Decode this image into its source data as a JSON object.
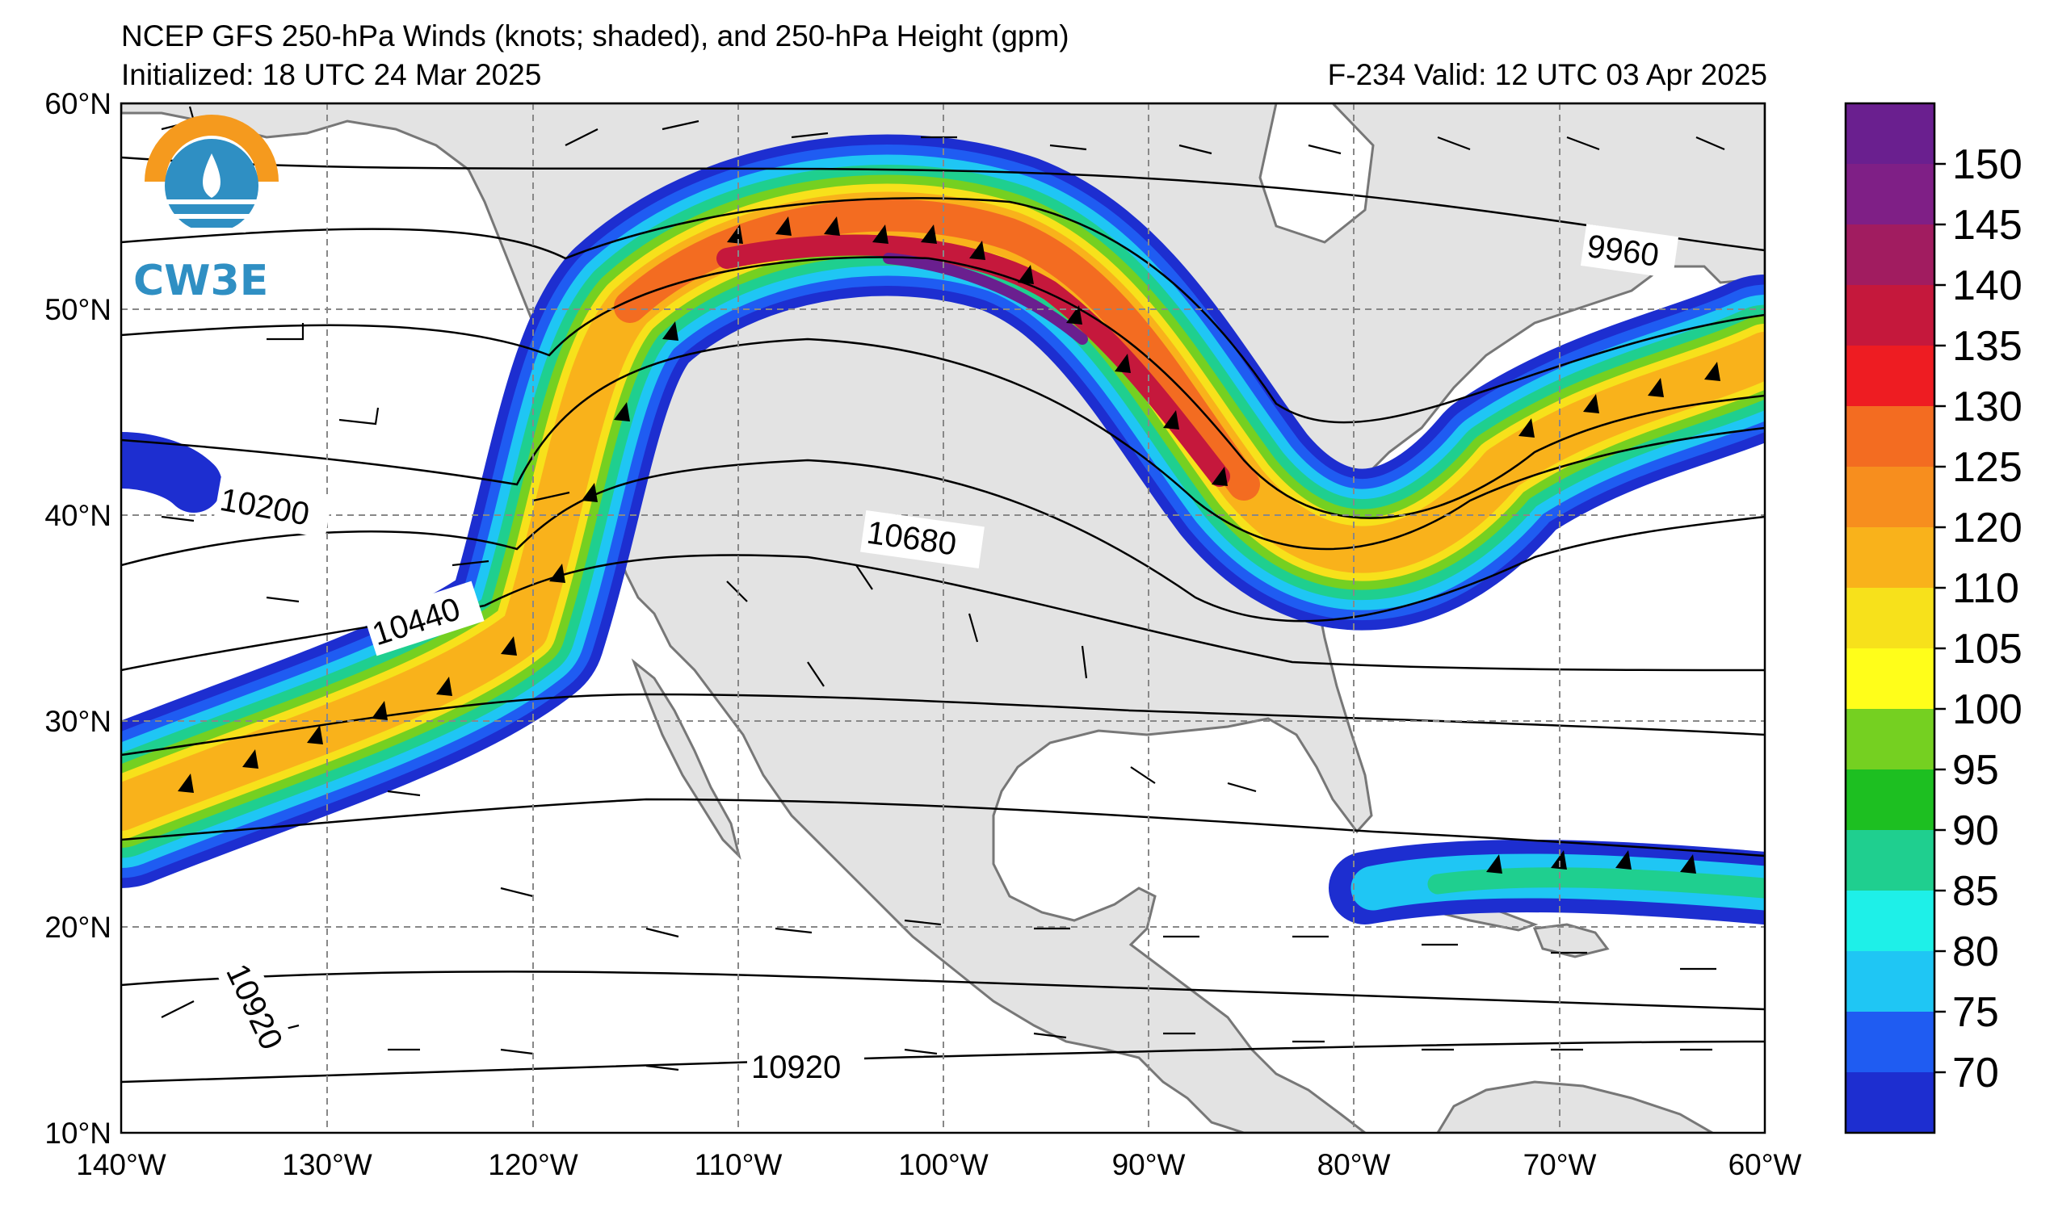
{
  "header": {
    "title": "NCEP GFS 250-hPa Winds (knots; shaded), and 250-hPa Height (gpm)",
    "initialized": "Initialized: 18 UTC 24 Mar 2025",
    "valid": "F-234  Valid: 12 UTC 03 Apr 2025"
  },
  "logo": {
    "text": "CW3E"
  },
  "axes": {
    "lat_labels": [
      "60°N",
      "50°N",
      "40°N",
      "30°N",
      "20°N",
      "10°N"
    ],
    "lon_labels": [
      "140°W",
      "130°W",
      "120°W",
      "110°W",
      "100°W",
      "90°W",
      "80°W",
      "70°W",
      "60°W"
    ],
    "lat_range": [
      10,
      60
    ],
    "lon_range": [
      -140,
      -60
    ]
  },
  "colorbar": {
    "tick_labels": [
      "150",
      "145",
      "140",
      "135",
      "130",
      "125",
      "120",
      "110",
      "105",
      "100",
      "95",
      "90",
      "85",
      "80",
      "75",
      "70"
    ],
    "colors_top_to_bottom": [
      "#6a1f8f",
      "#7f1f86",
      "#a11c60",
      "#c5183c",
      "#ee1c22",
      "#f36c21",
      "#f78e1e",
      "#f9b21b",
      "#f7e11b",
      "#fffe1a",
      "#75d021",
      "#1dbf21",
      "#1fcf8f",
      "#1ef0e8",
      "#1fc6f4",
      "#1f5cf2",
      "#1d2ed0"
    ]
  },
  "contours": {
    "labels": [
      "9960",
      "10200",
      "10440",
      "10680",
      "10920",
      "10920"
    ]
  },
  "colors": {
    "land": "#e3e3e3",
    "ocean": "#ffffff",
    "coast": "#777777",
    "grid": "#888888"
  }
}
